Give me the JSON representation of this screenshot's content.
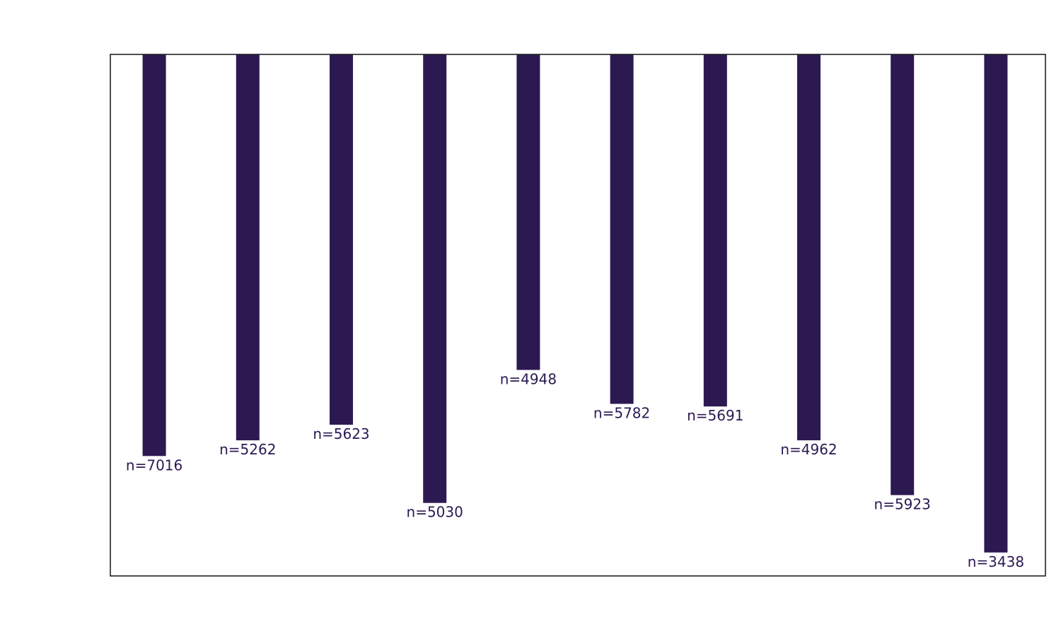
{
  "chart_data": {
    "type": "bar",
    "orientation": "vertical",
    "y_axis_inverted": true,
    "title": "",
    "xlabel": "",
    "ylabel": "",
    "categories": [
      "",
      "",
      "",
      "",
      "",
      "",
      "",
      "",
      "",
      ""
    ],
    "values": [
      7.7,
      7.4,
      7.1,
      8.6,
      6.05,
      6.7,
      6.75,
      7.4,
      8.45,
      9.55
    ],
    "ylim": [
      0,
      10
    ],
    "annotations": [
      "n=7016",
      "n=5262",
      "n=5623",
      "n=5030",
      "n=4948",
      "n=5782",
      "n=5691",
      "n=4962",
      "n=5923",
      "n=3438"
    ],
    "grid": false,
    "legend": "none",
    "colors": {
      "bar": "#2d1952",
      "label": "#2d1952",
      "frame": "#222222"
    }
  }
}
